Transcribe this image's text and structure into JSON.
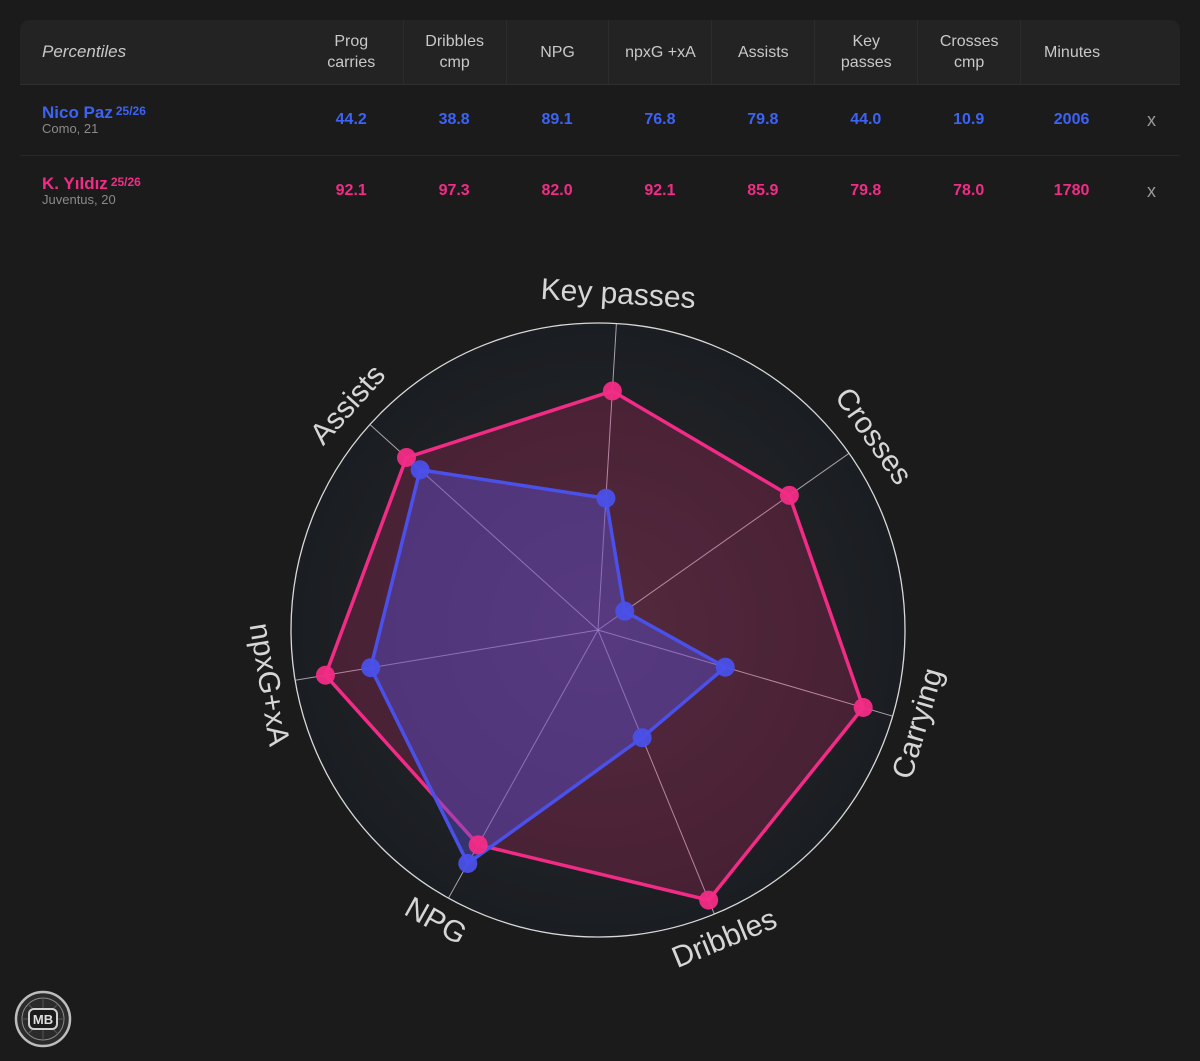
{
  "table": {
    "corner_label": "Percentiles",
    "columns": [
      [
        "Prog",
        "carries"
      ],
      [
        "Dribbles",
        "cmp"
      ],
      [
        "NPG"
      ],
      [
        "npxG +xA"
      ],
      [
        "Assists"
      ],
      [
        "Key",
        "passes"
      ],
      [
        "Crosses",
        "cmp"
      ],
      [
        "Minutes"
      ]
    ],
    "players": [
      {
        "name": "Nico Paz",
        "season": "25/26",
        "club": "Como, 21",
        "color": "#3d63f5",
        "values": [
          "44.2",
          "38.8",
          "89.1",
          "76.8",
          "79.8",
          "44.0",
          "10.9",
          "2006"
        ],
        "remove_label": "x"
      },
      {
        "name": "K. Yıldız",
        "season": "25/26",
        "club": "Juventus, 20",
        "color": "#f22c86",
        "values": [
          "92.1",
          "97.3",
          "82.0",
          "92.1",
          "85.9",
          "79.8",
          "78.0",
          "1780"
        ],
        "remove_label": "x"
      }
    ]
  },
  "chart_data": {
    "type": "radar",
    "axes": [
      "Key passes",
      "Crosses",
      "Carrying",
      "Dribbles",
      "NPG",
      "npxG+xA",
      "Assists"
    ],
    "range": [
      0,
      100
    ],
    "series": [
      {
        "name": "Nico Paz",
        "color": "#4a50e8",
        "values": [
          44.0,
          10.9,
          44.2,
          38.8,
          89.1,
          76.8,
          79.8
        ]
      },
      {
        "name": "K. Yıldız",
        "color": "#f22c86",
        "values": [
          79.8,
          78.0,
          92.1,
          97.3,
          82.0,
          92.1,
          85.9
        ]
      }
    ]
  },
  "logo": {
    "text": "MB",
    "icon": "mb-badge-icon"
  }
}
